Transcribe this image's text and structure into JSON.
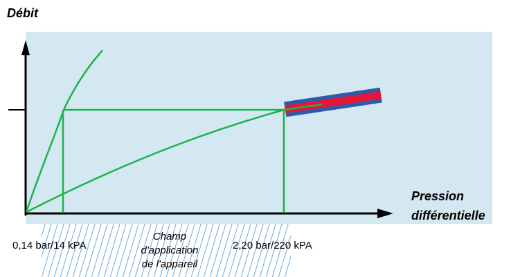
{
  "diagram": {
    "y_axis_label": "Débit",
    "x_axis_label_line1": "Pression",
    "x_axis_label_line2": "différentielle",
    "low_point_label": "0,14 bar/14 kPA",
    "high_point_label": "2,20 bar/220 kPA",
    "range_label_line1": "Champ",
    "range_label_line2": "d'application",
    "range_label_line3": "de l'appareil",
    "colors": {
      "background_panel": "#d3e8f1",
      "curve": "#1db24b",
      "axis": "#000000",
      "valve_outer": "#2e5aa8",
      "valve_inner": "#e4173a",
      "hatch": "#6fa8dc"
    }
  }
}
